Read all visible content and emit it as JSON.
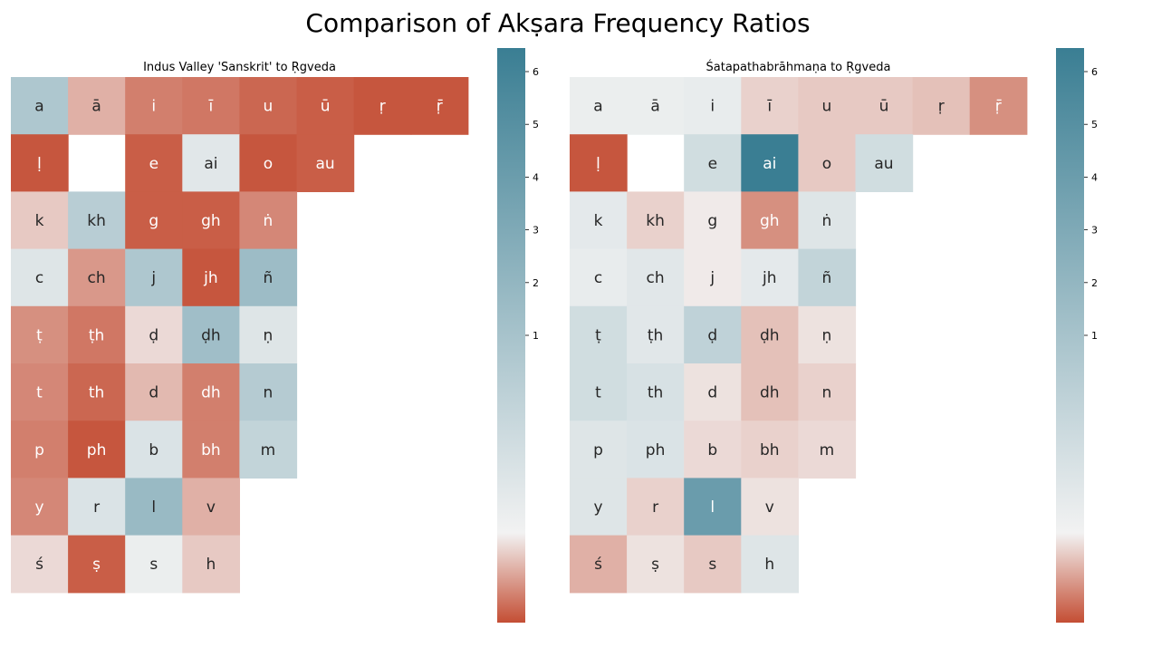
{
  "title": "Comparison of Akṣara Frequency Ratios",
  "chart_data": [
    {
      "type": "heatmap",
      "title": "Indus Valley 'Sanskrit' to Ṛgveda",
      "colorbar": {
        "ticks": [
          1,
          2,
          3,
          4,
          5,
          6
        ],
        "vmin": 0,
        "vmax": 6.4,
        "center": 1
      },
      "colors": {
        "low": "#c44e34",
        "mid": "#f2f2f2",
        "high": "#3a7e93"
      },
      "rows": [
        [
          {
            "label": "a",
            "value": 3.0
          },
          {
            "label": "ā",
            "value": 0.6
          },
          {
            "label": "i",
            "value": 0.3
          },
          {
            "label": "ī",
            "value": 0.25
          },
          {
            "label": "u",
            "value": 0.15
          },
          {
            "label": "ū",
            "value": 0.1
          },
          {
            "label": "ṛ",
            "value": 0.05
          },
          {
            "label": "ṝ",
            "value": 0.05
          }
        ],
        [
          {
            "label": "ḷ",
            "value": 0.05
          },
          null,
          {
            "label": "e",
            "value": 0.1
          },
          {
            "label": "ai",
            "value": 1.5
          },
          {
            "label": "o",
            "value": 0.05
          },
          {
            "label": "au",
            "value": 0.1
          }
        ],
        [
          {
            "label": "k",
            "value": 0.75
          },
          {
            "label": "kh",
            "value": 2.7
          },
          {
            "label": "g",
            "value": 0.1
          },
          {
            "label": "gh",
            "value": 0.1
          },
          {
            "label": "ṅ",
            "value": 0.35
          }
        ],
        [
          {
            "label": "c",
            "value": 1.6
          },
          {
            "label": "ch",
            "value": 0.45
          },
          {
            "label": "j",
            "value": 3.0
          },
          {
            "label": "jh",
            "value": 0.05
          },
          {
            "label": "ñ",
            "value": 3.5
          }
        ],
        [
          {
            "label": "ṭ",
            "value": 0.4
          },
          {
            "label": "ṭh",
            "value": 0.25
          },
          {
            "label": "ḍ",
            "value": 0.85
          },
          {
            "label": "ḍh",
            "value": 3.4
          },
          {
            "label": "ṇ",
            "value": 1.6
          }
        ],
        [
          {
            "label": "t",
            "value": 0.35
          },
          {
            "label": "th",
            "value": 0.15
          },
          {
            "label": "d",
            "value": 0.65
          },
          {
            "label": "dh",
            "value": 0.3
          },
          {
            "label": "n",
            "value": 2.8
          }
        ],
        [
          {
            "label": "p",
            "value": 0.3
          },
          {
            "label": "ph",
            "value": 0.05
          },
          {
            "label": "b",
            "value": 1.7
          },
          {
            "label": "bh",
            "value": 0.3
          },
          {
            "label": "m",
            "value": 2.4
          }
        ],
        [
          {
            "label": "y",
            "value": 0.35
          },
          {
            "label": "r",
            "value": 1.7
          },
          {
            "label": "l",
            "value": 3.6
          },
          {
            "label": "v",
            "value": 0.6
          }
        ],
        [
          {
            "label": "ś",
            "value": 0.85
          },
          {
            "label": "ṣ",
            "value": 0.1
          },
          {
            "label": "s",
            "value": 1.2
          },
          {
            "label": "h",
            "value": 0.75
          }
        ]
      ]
    },
    {
      "type": "heatmap",
      "title": "Śatapathabrāhmaṇa to Ṛgveda",
      "colorbar": {
        "ticks": [
          1,
          2,
          3,
          4,
          5,
          6
        ],
        "vmin": 0,
        "vmax": 6.4,
        "center": 1
      },
      "colors": {
        "low": "#c44e34",
        "mid": "#f2f2f2",
        "high": "#3a7e93"
      },
      "rows": [
        [
          {
            "label": "a",
            "value": 1.2
          },
          {
            "label": "ā",
            "value": 1.2
          },
          {
            "label": "i",
            "value": 1.3
          },
          {
            "label": "ī",
            "value": 0.8
          },
          {
            "label": "u",
            "value": 0.75
          },
          {
            "label": "ū",
            "value": 0.75
          },
          {
            "label": "ṛ",
            "value": 0.7
          },
          {
            "label": "ṝ",
            "value": 0.4
          }
        ],
        [
          {
            "label": "ḷ",
            "value": 0.05
          },
          null,
          {
            "label": "e",
            "value": 2.0
          },
          {
            "label": "ai",
            "value": 6.4
          },
          {
            "label": "o",
            "value": 0.75
          },
          {
            "label": "au",
            "value": 2.0
          }
        ],
        [
          {
            "label": "k",
            "value": 1.4
          },
          {
            "label": "kh",
            "value": 0.8
          },
          {
            "label": "g",
            "value": 0.95
          },
          {
            "label": "gh",
            "value": 0.4
          },
          {
            "label": "ṅ",
            "value": 1.6
          }
        ],
        [
          {
            "label": "c",
            "value": 1.3
          },
          {
            "label": "ch",
            "value": 1.5
          },
          {
            "label": "j",
            "value": 0.95
          },
          {
            "label": "jh",
            "value": 1.4
          },
          {
            "label": "ñ",
            "value": 2.4
          }
        ],
        [
          {
            "label": "ṭ",
            "value": 2.0
          },
          {
            "label": "ṭh",
            "value": 1.5
          },
          {
            "label": "ḍ",
            "value": 2.5
          },
          {
            "label": "ḍh",
            "value": 0.7
          },
          {
            "label": "ṇ",
            "value": 0.9
          }
        ],
        [
          {
            "label": "t",
            "value": 2.0
          },
          {
            "label": "th",
            "value": 1.8
          },
          {
            "label": "d",
            "value": 0.9
          },
          {
            "label": "dh",
            "value": 0.7
          },
          {
            "label": "n",
            "value": 0.8
          }
        ],
        [
          {
            "label": "p",
            "value": 1.6
          },
          {
            "label": "ph",
            "value": 1.7
          },
          {
            "label": "b",
            "value": 0.85
          },
          {
            "label": "bh",
            "value": 0.8
          },
          {
            "label": "m",
            "value": 0.85
          }
        ],
        [
          {
            "label": "y",
            "value": 1.6
          },
          {
            "label": "r",
            "value": 0.8
          },
          {
            "label": "l",
            "value": 5.0
          },
          {
            "label": "v",
            "value": 0.9
          }
        ],
        [
          {
            "label": "ś",
            "value": 0.6
          },
          {
            "label": "ṣ",
            "value": 0.9
          },
          {
            "label": "s",
            "value": 0.75
          },
          {
            "label": "h",
            "value": 1.6
          }
        ]
      ]
    }
  ]
}
